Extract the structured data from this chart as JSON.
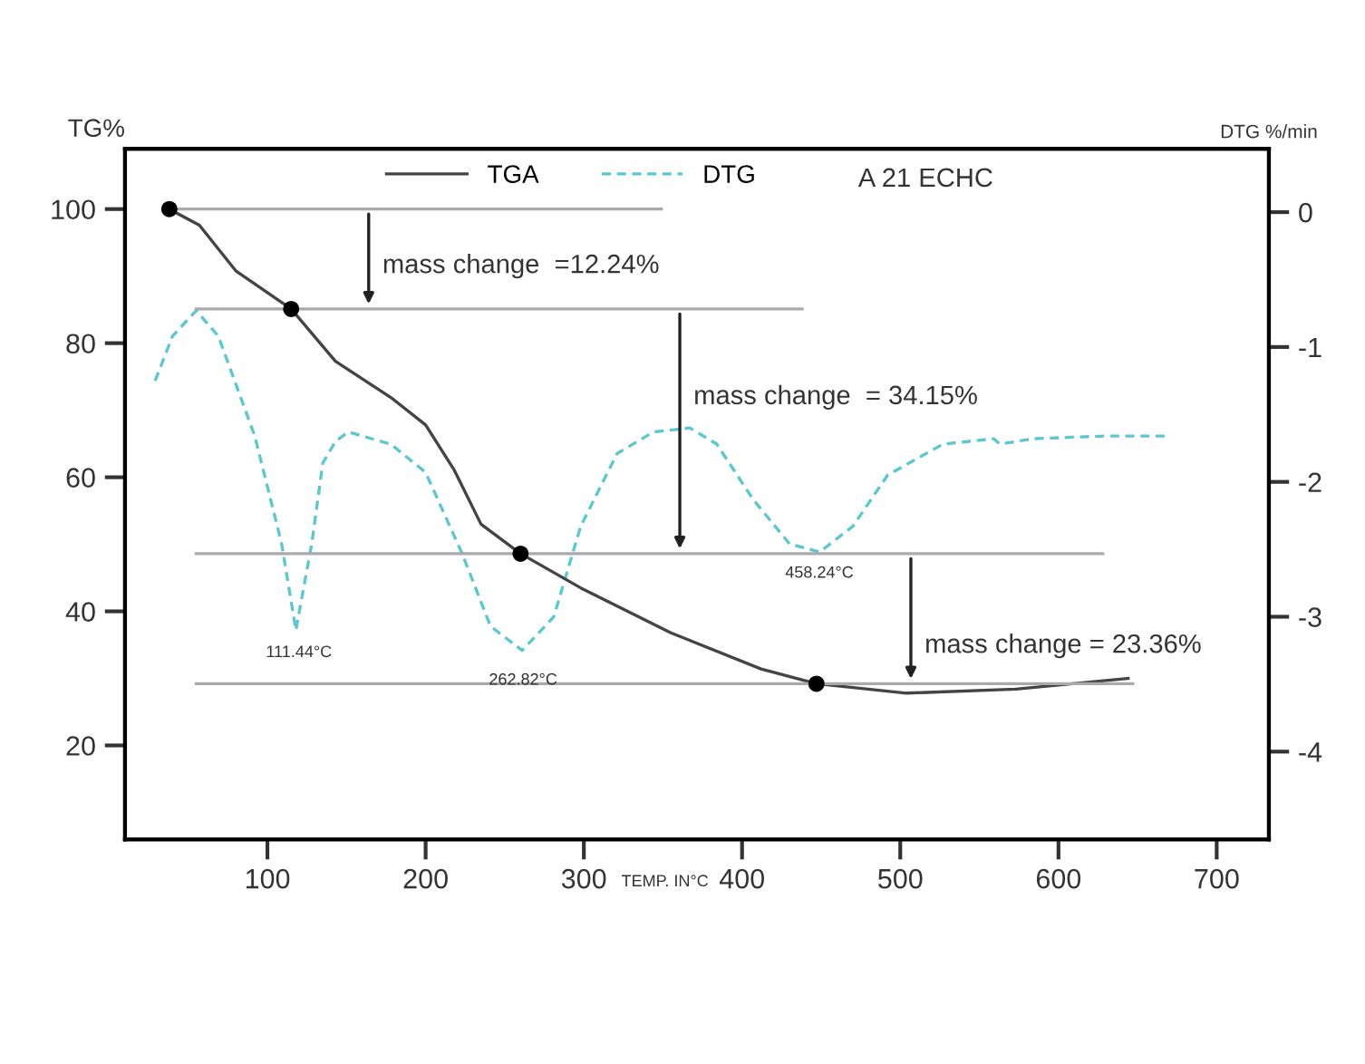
{
  "chart_data": {
    "type": "line",
    "ylabel": "TG%",
    "y2label": "DTG %/min",
    "xlabel": "TEMP. IN°C",
    "xlim": [
      10,
      733
    ],
    "xticks": [
      100,
      200,
      300,
      400,
      500,
      600,
      700
    ],
    "ylim": [
      6,
      109
    ],
    "yticks": [
      20,
      40,
      60,
      80,
      100
    ],
    "y2lim": [
      -4.65,
      0.47
    ],
    "y2ticks": [
      -4,
      -3,
      -2,
      -1,
      0
    ],
    "grid": false,
    "legend": "top",
    "series": [
      {
        "name": "TGA",
        "color": "#444444",
        "line_style": "solid",
        "x": [
          38,
          57,
          80,
          115,
          143,
          178,
          200,
          218,
          235,
          260,
          298,
          355,
          412,
          447,
          504,
          573,
          644
        ],
        "values": [
          100,
          97.6,
          90.8,
          85.1,
          77.3,
          71.9,
          67.8,
          61.1,
          53,
          48.6,
          43.5,
          36.8,
          31.4,
          29.2,
          27.8,
          28.4,
          30
        ]
      },
      {
        "name": "DTG",
        "type": "line",
        "axis": "y2",
        "color": "#5bc8d0",
        "line_style": "dashed",
        "x": [
          29,
          40,
          55,
          69,
          92,
          109,
          118,
          128,
          135,
          143,
          151,
          160,
          178,
          200,
          223,
          241,
          261,
          281,
          298,
          321,
          344,
          367,
          384,
          407,
          430,
          449,
          470,
          492,
          527,
          559,
          563,
          584,
          630,
          670
        ],
        "values": [
          -1.25,
          -0.92,
          -0.73,
          -0.92,
          -1.66,
          -2.46,
          -3.1,
          -2.46,
          -1.86,
          -1.7,
          -1.63,
          -1.66,
          -1.72,
          -1.93,
          -2.53,
          -3.07,
          -3.25,
          -3.0,
          -2.33,
          -1.79,
          -1.63,
          -1.6,
          -1.72,
          -2.13,
          -2.46,
          -2.52,
          -2.33,
          -1.95,
          -1.72,
          -1.68,
          -1.72,
          -1.68,
          -1.66,
          -1.66
        ]
      },
      {
        "type": "scatter",
        "color": "#000000",
        "marker": "circle",
        "x": [
          38,
          115,
          260,
          447
        ],
        "values": [
          100,
          85.1,
          48.6,
          29.2
        ]
      },
      {
        "type": "line",
        "color": "#aaaaaa",
        "line_style": "solid",
        "x": [
          38,
          349
        ],
        "values": [
          100,
          100
        ]
      },
      {
        "type": "line",
        "color": "#aaaaaa",
        "line_style": "solid",
        "x": [
          55,
          438
        ],
        "values": [
          85.1,
          85.1
        ]
      },
      {
        "type": "line",
        "color": "#aaaaaa",
        "line_style": "solid",
        "x": [
          55,
          628
        ],
        "values": [
          48.6,
          48.6
        ]
      },
      {
        "type": "line",
        "color": "#aaaaaa",
        "line_style": "solid",
        "x": [
          55,
          647
        ],
        "values": [
          29.2,
          29.2
        ]
      }
    ],
    "annotations": [
      "mass change  =12.24%",
      "mass change  = 34.15%",
      "mass change = 23.36%",
      "111.44°C",
      "262.82°C",
      "458.24°C",
      "A 21 ECHC"
    ]
  }
}
